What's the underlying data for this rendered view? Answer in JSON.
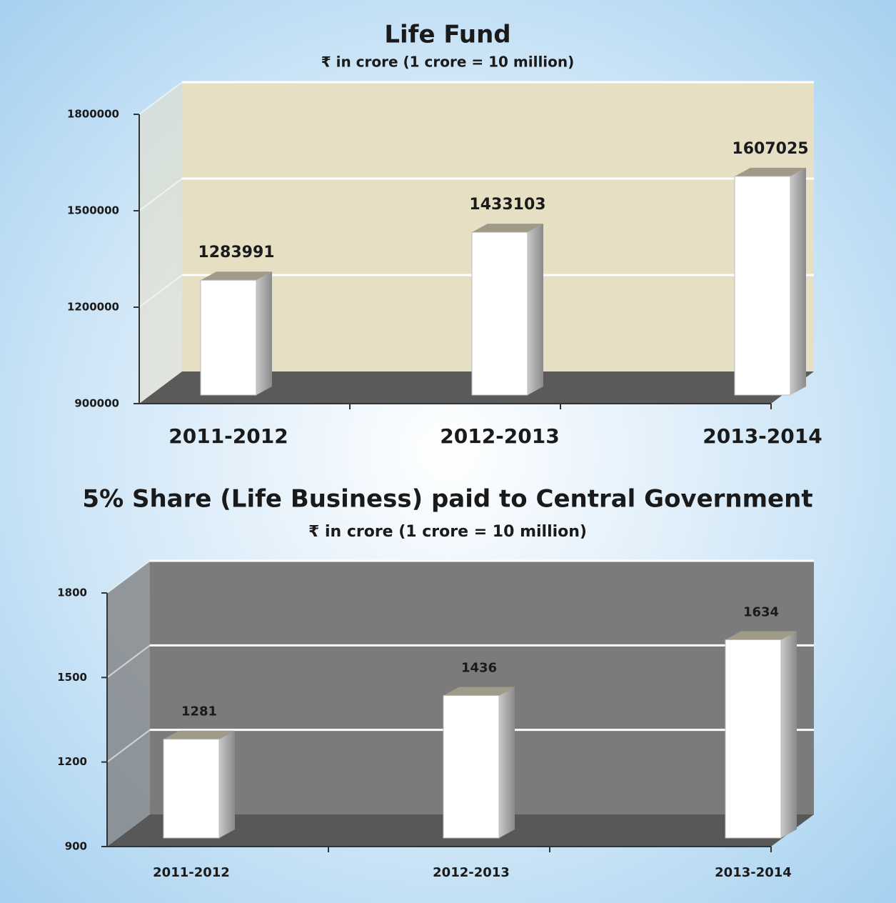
{
  "chart_data": [
    {
      "type": "bar3d",
      "title": "Life Fund",
      "subtitle": "₹ in crore (1 crore = 10 million)",
      "categories": [
        "2011-2012",
        "2012-2013",
        "2013-2014"
      ],
      "values": [
        1283991,
        1433103,
        1607025
      ],
      "color": "#ffffff",
      "wall_color": "#e6dfc4",
      "floor_color": "#5a5a5a",
      "ylim": [
        900000,
        1800000
      ],
      "yticks": [
        900000,
        1200000,
        1500000,
        1800000
      ],
      "grid": true
    },
    {
      "type": "bar3d",
      "title": "5% Share (Life Business) paid to Central Government",
      "subtitle": "₹ in crore (1 crore = 10 million)",
      "categories": [
        "2011-2012",
        "2012-2013",
        "2013-2014"
      ],
      "values": [
        1281,
        1436,
        1634
      ],
      "color": "#ffffff",
      "wall_color": "#7b7b7b",
      "floor_color": "#585858",
      "ylim": [
        900,
        1800
      ],
      "yticks": [
        900,
        1200,
        1500,
        1800
      ],
      "grid": true
    }
  ]
}
